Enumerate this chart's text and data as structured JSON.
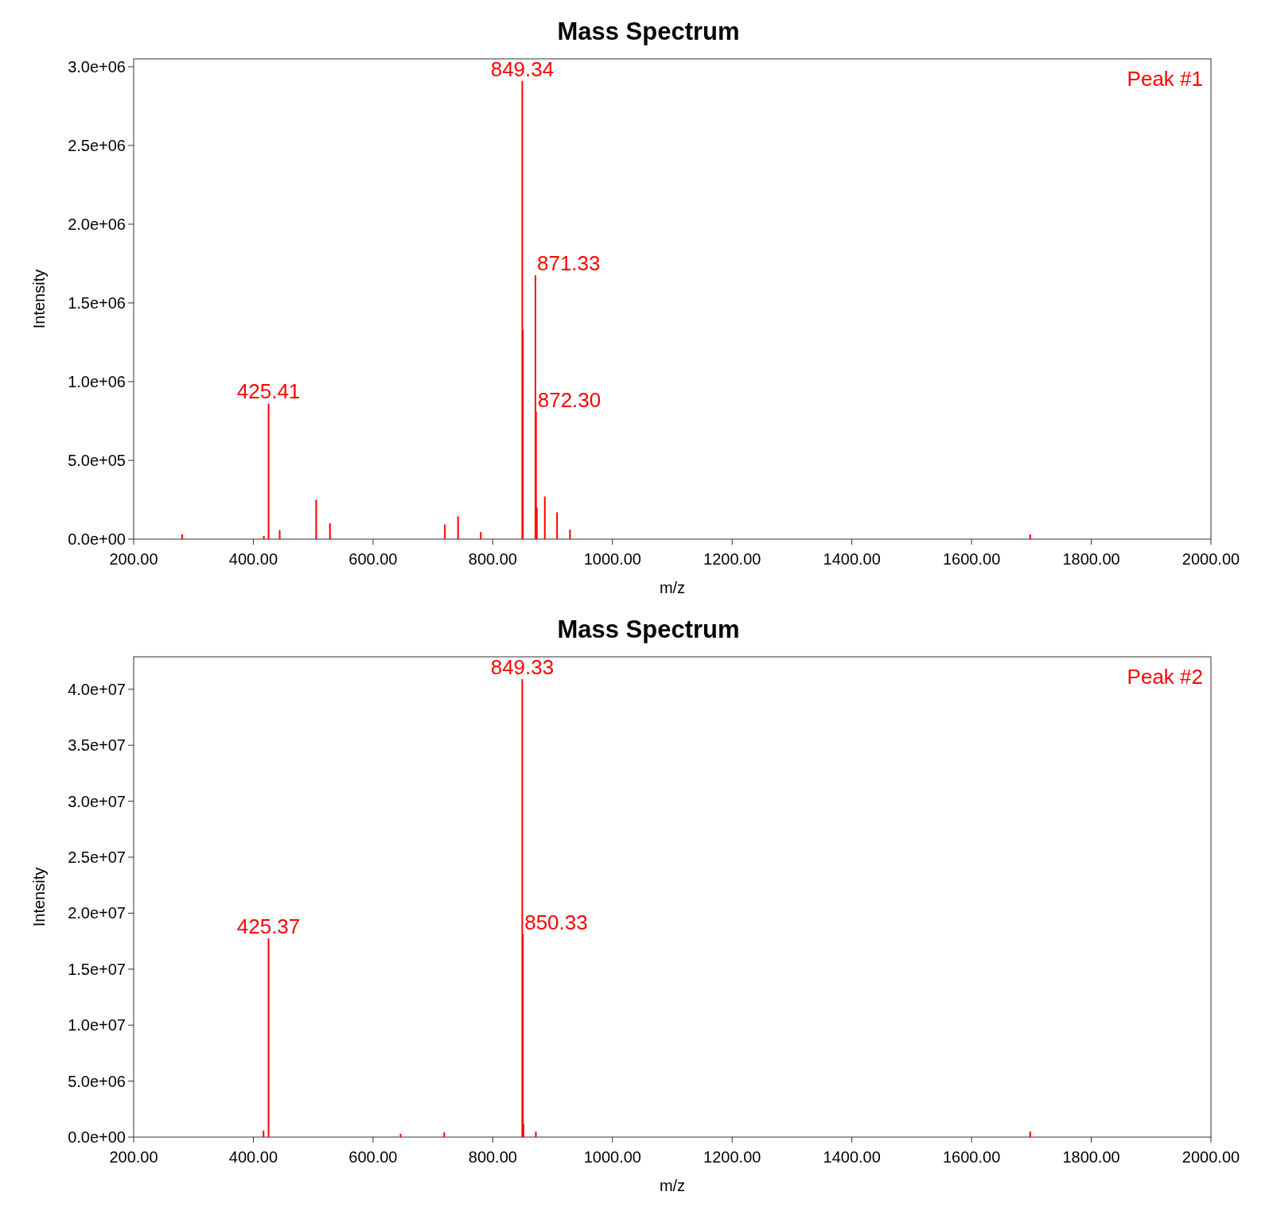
{
  "chart_data": [
    {
      "type": "bar",
      "title": "Mass Spectrum",
      "xlabel": "m/z",
      "ylabel": "Intensity",
      "x": [
        281,
        417.5,
        425.41,
        444,
        505,
        528,
        720,
        742,
        780,
        849.34,
        850.35,
        871.33,
        872.3,
        873.6,
        887,
        907.5,
        929,
        1698
      ],
      "series": [
        {
          "color": "#ff0000",
          "values": [
            30000,
            20000,
            861000,
            57000,
            250000,
            100000,
            93000,
            144000,
            46000,
            2910000,
            1330000,
            1675000,
            810000,
            200000,
            270000,
            170000,
            60000,
            30000
          ]
        }
      ],
      "xlim": [
        200,
        2000
      ],
      "xticks": [
        {
          "value": 200,
          "label": "200.00"
        },
        {
          "value": 400,
          "label": "400.00"
        },
        {
          "value": 600,
          "label": "600.00"
        },
        {
          "value": 800,
          "label": "800.00"
        },
        {
          "value": 1000,
          "label": "1000.00"
        },
        {
          "value": 1200,
          "label": "1200.00"
        },
        {
          "value": 1400,
          "label": "1400.00"
        },
        {
          "value": 1600,
          "label": "1600.00"
        },
        {
          "value": 1800,
          "label": "1800.00"
        },
        {
          "value": 2000,
          "label": "2000.00"
        }
      ],
      "ylim": [
        0,
        3050000
      ],
      "yticks": [
        {
          "value": 0,
          "label": "0.0e+00"
        },
        {
          "value": 500000,
          "label": "5.0e+05"
        },
        {
          "value": 1000000,
          "label": "1.0e+06"
        },
        {
          "value": 1500000,
          "label": "1.5e+06"
        },
        {
          "value": 2000000,
          "label": "2.0e+06"
        },
        {
          "value": 2500000,
          "label": "2.5e+06"
        },
        {
          "value": 3000000,
          "label": "3.0e+06"
        }
      ],
      "annotations": [
        "Peak #1",
        {
          "text": "849.34",
          "x": 849.34,
          "y": 2910000
        },
        {
          "text": "871.33",
          "x": 871.33,
          "y": 1675000
        },
        {
          "text": "872.30",
          "x": 872.3,
          "y": 810000
        },
        {
          "text": "425.41",
          "x": 425.41,
          "y": 861000
        }
      ]
    },
    {
      "type": "bar",
      "title": "Mass Spectrum",
      "xlabel": "m/z",
      "ylabel": "Intensity",
      "x": [
        417,
        425.37,
        646,
        719,
        849.33,
        850.33,
        851.3,
        872,
        1698
      ],
      "series": [
        {
          "color": "#ff0000",
          "values": [
            580000,
            17750000,
            300000,
            430000,
            40900000,
            18100000,
            1200000,
            500000,
            500000
          ]
        }
      ],
      "xlim": [
        200,
        2000
      ],
      "xticks": [
        {
          "value": 200,
          "label": "200.00"
        },
        {
          "value": 400,
          "label": "400.00"
        },
        {
          "value": 600,
          "label": "600.00"
        },
        {
          "value": 800,
          "label": "800.00"
        },
        {
          "value": 1000,
          "label": "1000.00"
        },
        {
          "value": 1200,
          "label": "1200.00"
        },
        {
          "value": 1400,
          "label": "1400.00"
        },
        {
          "value": 1600,
          "label": "1600.00"
        },
        {
          "value": 1800,
          "label": "1800.00"
        },
        {
          "value": 2000,
          "label": "2000.00"
        }
      ],
      "ylim": [
        0,
        42900000
      ],
      "yticks": [
        {
          "value": 0,
          "label": "0.0e+00"
        },
        {
          "value": 5000000,
          "label": "5.0e+06"
        },
        {
          "value": 10000000,
          "label": "1.0e+07"
        },
        {
          "value": 15000000,
          "label": "1.5e+07"
        },
        {
          "value": 20000000,
          "label": "2.0e+07"
        },
        {
          "value": 25000000,
          "label": "2.5e+07"
        },
        {
          "value": 30000000,
          "label": "3.0e+07"
        },
        {
          "value": 35000000,
          "label": "3.5e+07"
        },
        {
          "value": 40000000,
          "label": "4.0e+07"
        }
      ],
      "annotations": [
        "Peak #2",
        {
          "text": "849.33",
          "x": 849.33,
          "y": 40900000
        },
        {
          "text": "850.33",
          "x": 850.33,
          "y": 18100000
        },
        {
          "text": "425.37",
          "x": 425.37,
          "y": 17750000
        }
      ]
    }
  ]
}
